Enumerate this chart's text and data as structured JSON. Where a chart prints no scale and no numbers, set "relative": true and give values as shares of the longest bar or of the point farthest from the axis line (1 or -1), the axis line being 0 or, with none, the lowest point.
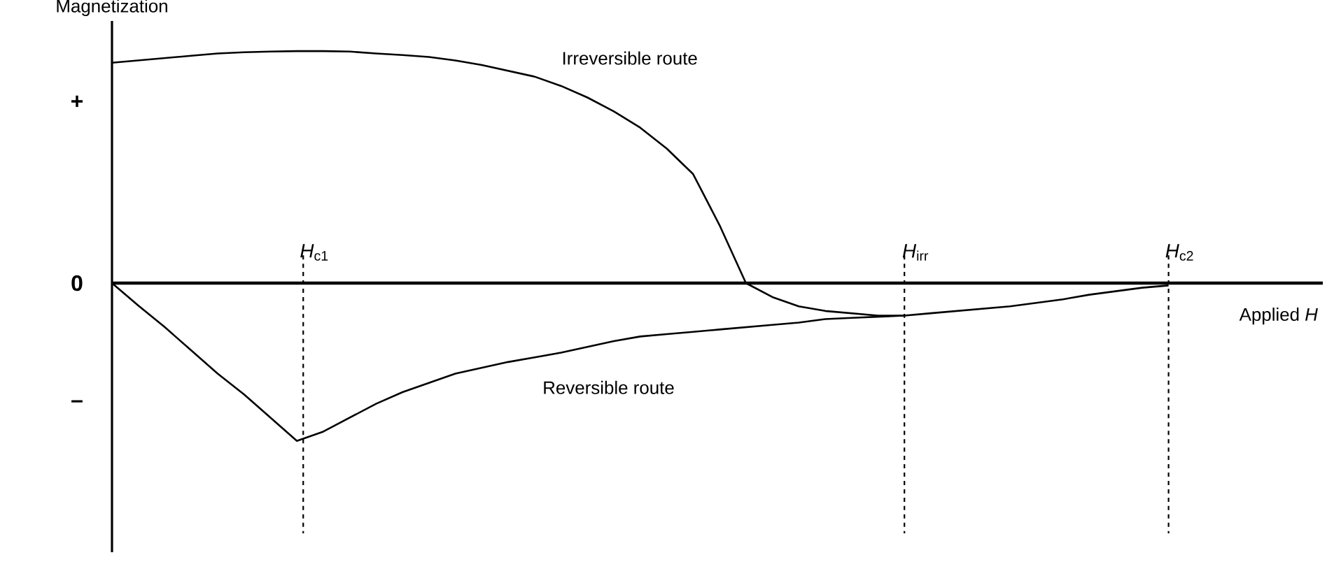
{
  "chart_data": {
    "type": "line",
    "relative": true,
    "xlabel": "Applied *H*",
    "ylabel": "Magnetization",
    "categories": [
      null,
      null,
      null,
      null,
      null,
      null,
      null,
      null,
      null,
      null,
      null,
      null,
      null,
      null,
      null,
      null,
      null,
      null,
      null,
      null,
      null,
      null,
      null,
      null,
      null,
      null,
      null,
      null,
      null,
      null,
      null,
      null,
      null,
      null,
      null,
      null,
      null,
      null,
      null,
      null,
      null
    ],
    "series": [
      {
        "color": "#000000",
        "values": [
          0.95,
          0.96,
          0.97,
          0.98,
          0.99,
          0.995,
          0.998,
          1.0,
          1.0,
          0.998,
          0.99,
          0.983,
          0.975,
          0.96,
          0.94,
          0.915,
          0.89,
          0.85,
          0.8,
          0.74,
          0.67,
          0.58,
          0.47,
          0.25,
          0.0,
          -0.06,
          -0.1,
          -0.12,
          -0.13,
          -0.14,
          -0.14,
          null,
          null,
          null,
          null,
          null,
          null,
          null,
          null,
          null,
          null
        ]
      },
      {
        "color": "#000000",
        "values": [
          0,
          -0.097,
          -0.19,
          -0.29,
          -0.39,
          -0.48,
          -0.58,
          -0.68,
          -0.64,
          -0.58,
          -0.52,
          -0.47,
          -0.43,
          -0.39,
          -0.365,
          -0.34,
          -0.32,
          -0.3,
          -0.275,
          -0.25,
          -0.23,
          -0.22,
          -0.21,
          -0.2,
          -0.19,
          -0.18,
          -0.17,
          -0.155,
          -0.15,
          -0.145,
          -0.14,
          -0.13,
          -0.12,
          -0.11,
          -0.1,
          -0.085,
          -0.07,
          -0.05,
          -0.035,
          -0.02,
          -0.01
        ]
      }
    ],
    "annotations": [
      "Irreversible route",
      "Reversible route",
      "+",
      "0",
      "–",
      "*H*$_{c1}$",
      "*H*$_{irr}$",
      "*H*$_{c2}$"
    ],
    "line_style": "solid",
    "marker": "none"
  }
}
